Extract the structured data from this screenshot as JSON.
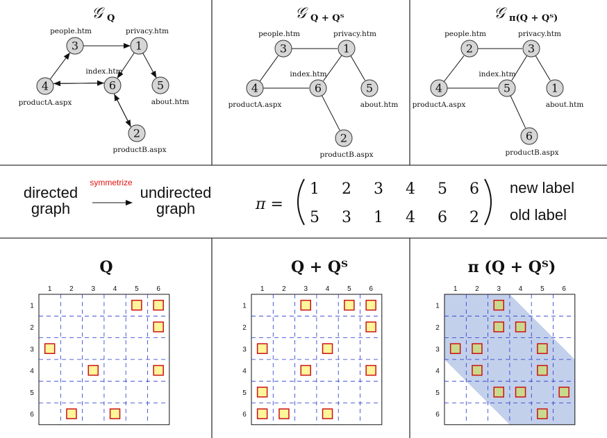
{
  "graphs": [
    {
      "title": "𝒢",
      "subscript": "Q",
      "nodes": [
        {
          "id": "3",
          "page": "people.htm"
        },
        {
          "id": "1",
          "page": "privacy.htm"
        },
        {
          "id": "6",
          "page": "index.htm"
        },
        {
          "id": "4",
          "page": "productA.aspx"
        },
        {
          "id": "5",
          "page": "about.htm"
        },
        {
          "id": "2",
          "page": "productB.aspx"
        }
      ],
      "edges": [
        [
          "3",
          "1"
        ],
        [
          "4",
          "3"
        ],
        [
          "1",
          "6"
        ],
        [
          "1",
          "5"
        ],
        [
          "6",
          "4"
        ],
        [
          "4",
          "6"
        ],
        [
          "6",
          "2"
        ],
        [
          "2",
          "6"
        ]
      ],
      "directed": true
    },
    {
      "title": "𝒢",
      "subscript": "Q + Qᵀ",
      "nodes": [
        {
          "id": "3",
          "page": "people.htm"
        },
        {
          "id": "1",
          "page": "privacy.htm"
        },
        {
          "id": "6",
          "page": "index.htm"
        },
        {
          "id": "4",
          "page": "productA.aspx"
        },
        {
          "id": "5",
          "page": "about.htm"
        },
        {
          "id": "2",
          "page": "productB.aspx"
        }
      ],
      "edges": [
        [
          "3",
          "1"
        ],
        [
          "4",
          "3"
        ],
        [
          "1",
          "6"
        ],
        [
          "1",
          "5"
        ],
        [
          "4",
          "6"
        ],
        [
          "6",
          "2"
        ]
      ],
      "directed": false
    },
    {
      "title": "𝒢",
      "subscript": "π(Q + Qᵀ)",
      "nodes": [
        {
          "id": "2",
          "page": "people.htm"
        },
        {
          "id": "3",
          "page": "privacy.htm"
        },
        {
          "id": "5",
          "page": "index.htm"
        },
        {
          "id": "4",
          "page": "productA.aspx"
        },
        {
          "id": "1",
          "page": "about.htm"
        },
        {
          "id": "6",
          "page": "productB.aspx"
        }
      ],
      "edges": [
        [
          "2",
          "3"
        ],
        [
          "4",
          "2"
        ],
        [
          "3",
          "5"
        ],
        [
          "3",
          "1"
        ],
        [
          "4",
          "5"
        ],
        [
          "5",
          "6"
        ]
      ],
      "directed": false
    }
  ],
  "middle": {
    "left_top": "directed",
    "left_bottom": "graph",
    "arrow_label": "symmetrize",
    "right_top": "undirected",
    "right_bottom": "graph",
    "pi_symbol": "π =",
    "perm_row_new": [
      "1",
      "2",
      "3",
      "4",
      "5",
      "6"
    ],
    "perm_row_old": [
      "5",
      "3",
      "1",
      "4",
      "6",
      "2"
    ],
    "new_label": "new label",
    "old_label": "old label"
  },
  "matrices": [
    {
      "title": "Q",
      "ticks": [
        "1",
        "2",
        "3",
        "4",
        "5",
        "6"
      ],
      "entries": [
        [
          1,
          5
        ],
        [
          1,
          6
        ],
        [
          2,
          6
        ],
        [
          3,
          1
        ],
        [
          4,
          3
        ],
        [
          4,
          6
        ],
        [
          6,
          2
        ],
        [
          6,
          4
        ]
      ],
      "fill": "#fff59a",
      "stroke": "#cc1111",
      "band": false
    },
    {
      "title": "Q + Qᵀ",
      "ticks": [
        "1",
        "2",
        "3",
        "4",
        "5",
        "6"
      ],
      "entries": [
        [
          1,
          3
        ],
        [
          1,
          5
        ],
        [
          1,
          6
        ],
        [
          2,
          6
        ],
        [
          3,
          1
        ],
        [
          3,
          4
        ],
        [
          4,
          3
        ],
        [
          4,
          6
        ],
        [
          5,
          1
        ],
        [
          6,
          1
        ],
        [
          6,
          2
        ],
        [
          6,
          4
        ]
      ],
      "fill": "#fff59a",
      "stroke": "#cc1111",
      "band": false
    },
    {
      "title": "π (Q + Qᵀ)",
      "ticks": [
        "1",
        "2",
        "3",
        "4",
        "5",
        "6"
      ],
      "entries": [
        [
          1,
          3
        ],
        [
          2,
          3
        ],
        [
          2,
          4
        ],
        [
          3,
          1
        ],
        [
          3,
          2
        ],
        [
          3,
          5
        ],
        [
          4,
          2
        ],
        [
          4,
          5
        ],
        [
          5,
          3
        ],
        [
          5,
          4
        ],
        [
          5,
          6
        ],
        [
          6,
          5
        ]
      ],
      "fill": "#c9d98e",
      "stroke": "#cc1111",
      "band": true,
      "band_color": "#b9c8e8"
    }
  ],
  "colors": {
    "node_fill": "#d6d6d6",
    "grid_dash": "#2233cc",
    "divider": "#333333"
  }
}
